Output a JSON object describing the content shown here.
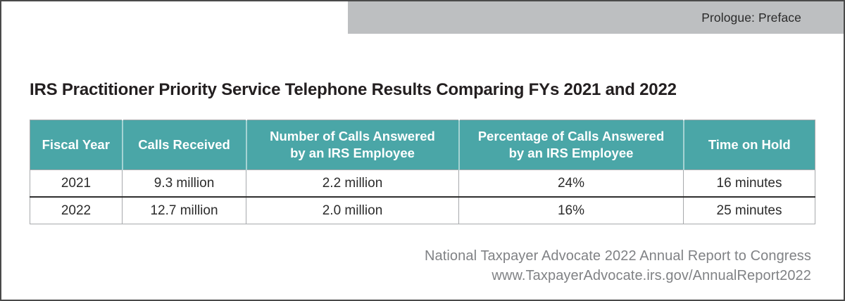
{
  "tab": {
    "label": "Prologue: Preface"
  },
  "title": "IRS Practitioner Priority Service Telephone Results Comparing FYs 2021 and 2022",
  "table": {
    "headers": [
      [
        "Fiscal Year"
      ],
      [
        "Calls Received"
      ],
      [
        "Number of Calls Answered",
        "by an IRS Employee"
      ],
      [
        "Percentage of Calls Answered",
        "by an IRS Employee"
      ],
      [
        "Time on Hold"
      ]
    ],
    "rows": [
      [
        "2021",
        "9.3 million",
        "2.2 million",
        "24%",
        "16 minutes"
      ],
      [
        "2022",
        "12.7 million",
        "2.0 million",
        "16%",
        "25 minutes"
      ]
    ]
  },
  "source": {
    "line1": "National Taxpayer Advocate 2022 Annual Report to Congress",
    "line2": "www.TaxpayerAdvocate.irs.gov/AnnualReport2022"
  },
  "colors": {
    "table_header_teal": "#4aa6a7",
    "tab_gray": "#bdbfc1",
    "frame_border": "#4a4a4a",
    "source_gray": "#808285"
  }
}
